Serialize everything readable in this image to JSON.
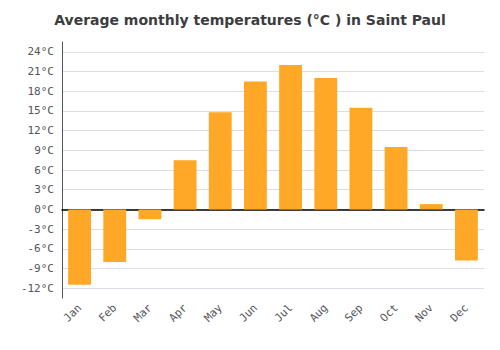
{
  "chart_data": {
    "type": "bar",
    "title": "Average monthly temperatures (°C ) in Saint Paul",
    "categories": [
      "Jan",
      "Feb",
      "Mar",
      "Apr",
      "May",
      "Jun",
      "Jul",
      "Aug",
      "Sep",
      "Oct",
      "Nov",
      "Dec"
    ],
    "values": [
      -11.5,
      -8.0,
      -1.5,
      7.5,
      14.8,
      19.5,
      22.0,
      20.0,
      15.5,
      9.5,
      0.8,
      -7.8
    ],
    "color": "#FFA726",
    "ylim": [
      -13.5,
      25.5
    ],
    "yticks": [
      {
        "value": -12,
        "label": "-12°C"
      },
      {
        "value": -9,
        "label": "-9°C"
      },
      {
        "value": -6,
        "label": "-6°C"
      },
      {
        "value": -3,
        "label": "-3°C"
      },
      {
        "value": 0,
        "label": "0°C"
      },
      {
        "value": 3,
        "label": "3°C"
      },
      {
        "value": 6,
        "label": "6°C"
      },
      {
        "value": 9,
        "label": "9°C"
      },
      {
        "value": 12,
        "label": "12°C"
      },
      {
        "value": 15,
        "label": "15°C"
      },
      {
        "value": 18,
        "label": "18°C"
      },
      {
        "value": 21,
        "label": "21°C"
      },
      {
        "value": 24,
        "label": "24°C"
      }
    ],
    "grid": true
  }
}
